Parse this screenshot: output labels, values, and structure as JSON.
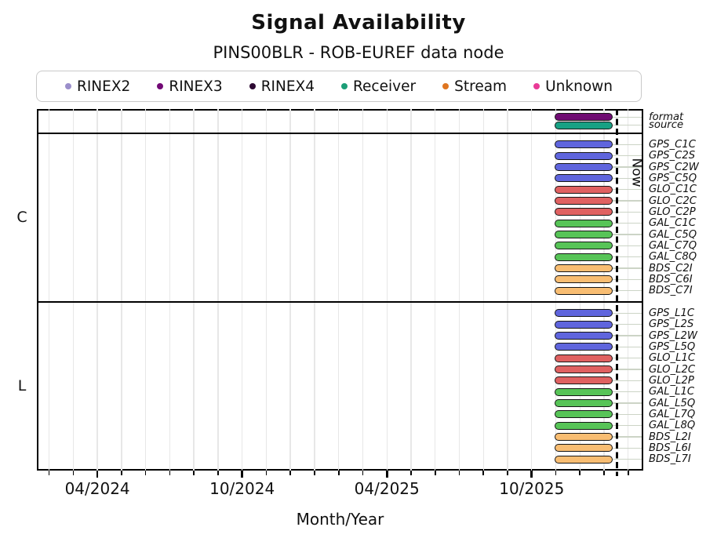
{
  "title": "Signal Availability",
  "subtitle": "PINS00BLR - ROB-EUREF data node",
  "legend": {
    "items": [
      {
        "label": "RINEX2",
        "color": "#9b8fcb"
      },
      {
        "label": "RINEX3",
        "color": "#720975"
      },
      {
        "label": "RINEX4",
        "color": "#2d0a33"
      },
      {
        "label": "Receiver",
        "color": "#1b9e77"
      },
      {
        "label": "Stream",
        "color": "#df7520"
      },
      {
        "label": "Unknown",
        "color": "#e93a96"
      }
    ]
  },
  "chart_data": {
    "type": "gantt",
    "title": "Signal Availability",
    "subtitle": "PINS00BLR - ROB-EUREF data node",
    "xlabel": "Month/Year",
    "x_axis": {
      "major_ticks": [
        {
          "label": "04/2024",
          "date": "2024-04-01"
        },
        {
          "label": "10/2024",
          "date": "2024-10-01"
        },
        {
          "label": "04/2025",
          "date": "2025-04-01"
        },
        {
          "label": "10/2025",
          "date": "2025-10-01"
        }
      ],
      "minor_tick_every": "1 month",
      "range_start": "2024-01-16",
      "range_end": "2026-02-20",
      "grid": "vertical-monthly"
    },
    "now_line": {
      "label": "Now",
      "date": "2026-01-17"
    },
    "interval": {
      "start": "2025-10-30",
      "end": "2026-01-12"
    },
    "group_colors": {
      "rinex3": "#6f0b72",
      "receiver": "#18a184",
      "gps": "#5f65dd",
      "glo": "#e06161",
      "gal": "#57c457",
      "bds": "#f8bd72"
    },
    "sections": [
      {
        "name": "",
        "rows": [
          {
            "label": "format",
            "group": "rinex3"
          },
          {
            "label": "source",
            "group": "receiver"
          }
        ]
      },
      {
        "name": "C",
        "rows": [
          {
            "label": "GPS_C1C",
            "group": "gps"
          },
          {
            "label": "GPS_C2S",
            "group": "gps"
          },
          {
            "label": "GPS_C2W",
            "group": "gps"
          },
          {
            "label": "GPS_C5Q",
            "group": "gps"
          },
          {
            "label": "GLO_C1C",
            "group": "glo"
          },
          {
            "label": "GLO_C2C",
            "group": "glo"
          },
          {
            "label": "GLO_C2P",
            "group": "glo"
          },
          {
            "label": "GAL_C1C",
            "group": "gal"
          },
          {
            "label": "GAL_C5Q",
            "group": "gal"
          },
          {
            "label": "GAL_C7Q",
            "group": "gal"
          },
          {
            "label": "GAL_C8Q",
            "group": "gal"
          },
          {
            "label": "BDS_C2I",
            "group": "bds"
          },
          {
            "label": "BDS_C6I",
            "group": "bds"
          },
          {
            "label": "BDS_C7I",
            "group": "bds"
          }
        ]
      },
      {
        "name": "L",
        "rows": [
          {
            "label": "GPS_L1C",
            "group": "gps"
          },
          {
            "label": "GPS_L2S",
            "group": "gps"
          },
          {
            "label": "GPS_L2W",
            "group": "gps"
          },
          {
            "label": "GPS_L5Q",
            "group": "gps"
          },
          {
            "label": "GLO_L1C",
            "group": "glo"
          },
          {
            "label": "GLO_L2C",
            "group": "glo"
          },
          {
            "label": "GLO_L2P",
            "group": "glo"
          },
          {
            "label": "GAL_L1C",
            "group": "gal"
          },
          {
            "label": "GAL_L5Q",
            "group": "gal"
          },
          {
            "label": "GAL_L7Q",
            "group": "gal"
          },
          {
            "label": "GAL_L8Q",
            "group": "gal"
          },
          {
            "label": "BDS_L2I",
            "group": "bds"
          },
          {
            "label": "BDS_L6I",
            "group": "bds"
          },
          {
            "label": "BDS_L7I",
            "group": "bds"
          }
        ]
      }
    ]
  }
}
